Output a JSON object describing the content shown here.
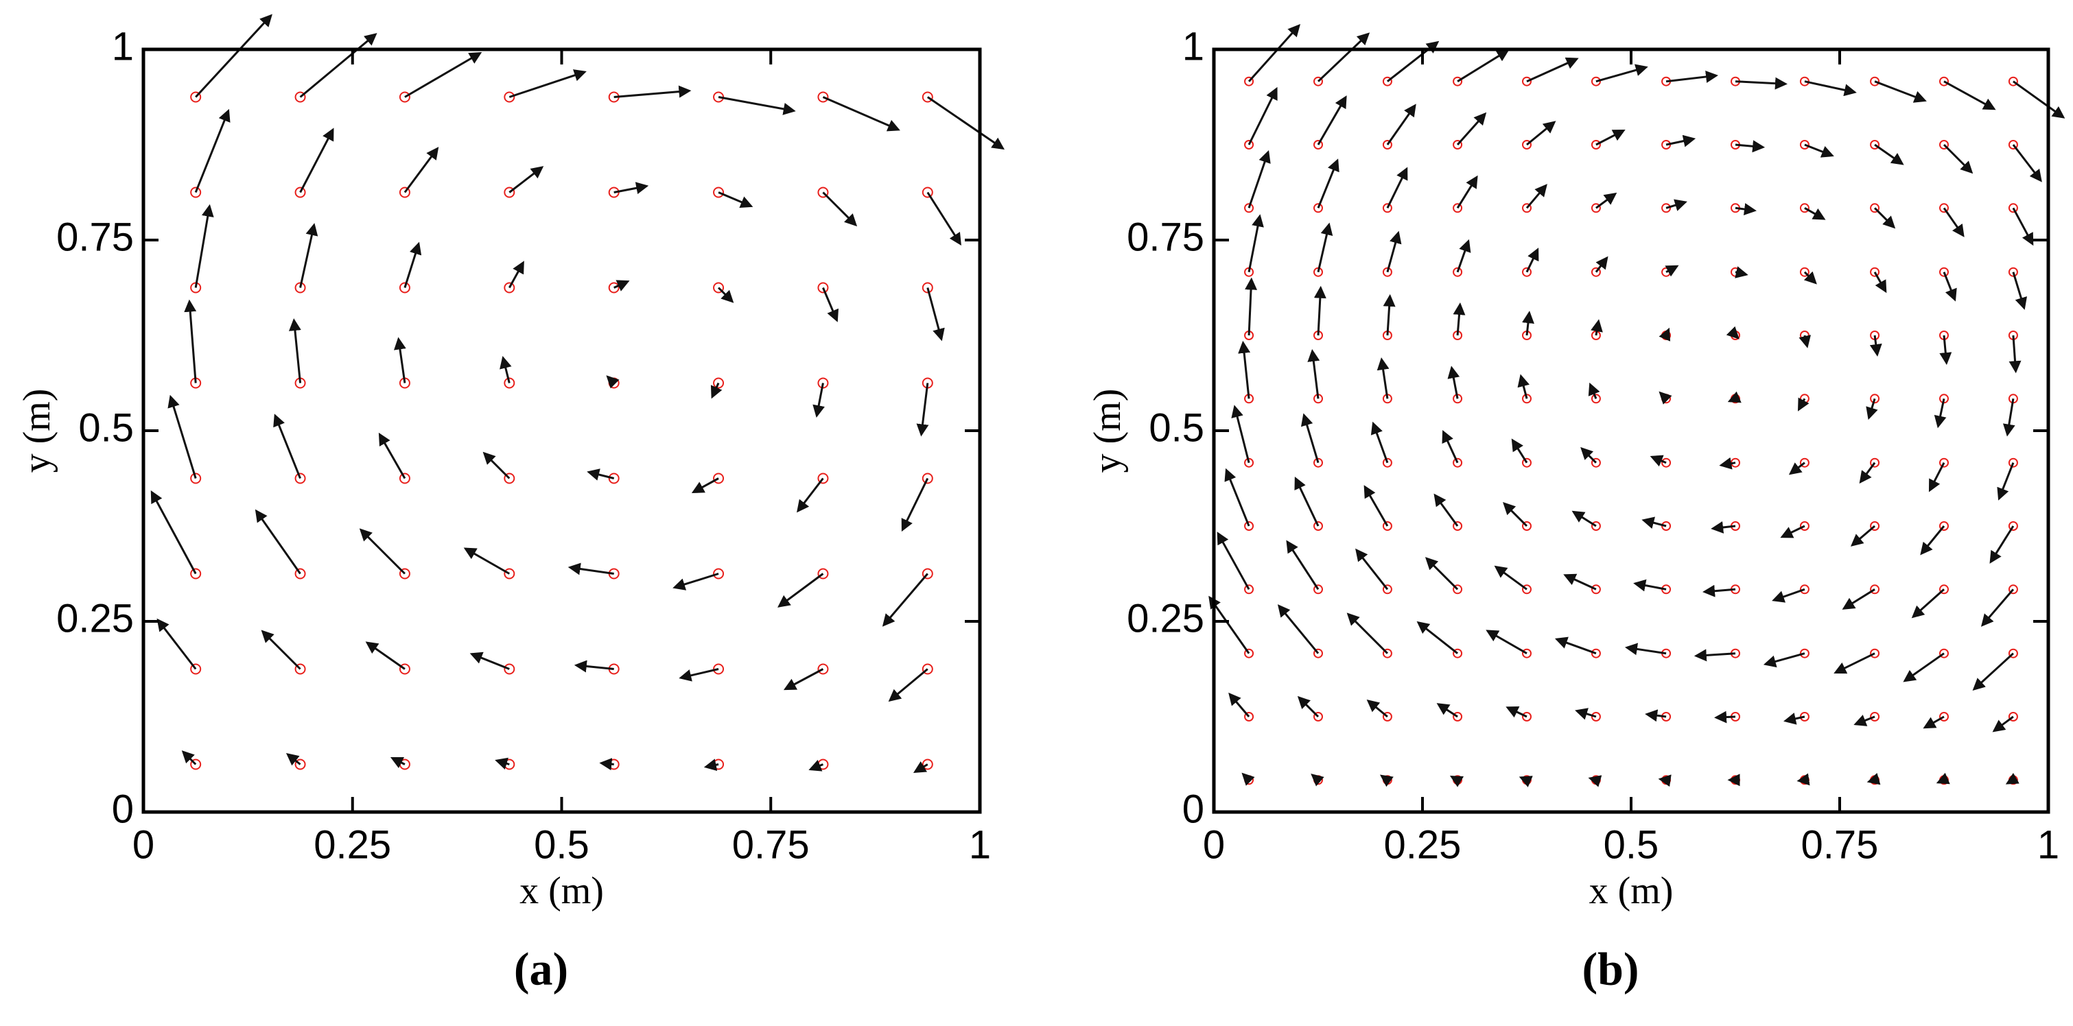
{
  "chart_data": [
    {
      "type": "quiver",
      "label": "(a)",
      "xlabel": "x (m)",
      "ylabel": "y (m)",
      "xlim": [
        0,
        1
      ],
      "ylim": [
        0,
        1
      ],
      "xticks": [
        0,
        0.25,
        0.5,
        0.75,
        1
      ],
      "yticks": [
        0,
        0.25,
        0.5,
        0.75,
        1
      ],
      "particle_color": "#e8201c",
      "arrow_color": "#111111",
      "x": [
        0.0625,
        0.1875,
        0.3125,
        0.4375,
        0.5625,
        0.6875,
        0.8125,
        0.9375
      ],
      "y": [
        0.0625,
        0.1875,
        0.3125,
        0.4375,
        0.5625,
        0.6875,
        0.8125,
        0.9375
      ],
      "u": [
        [
          -0.1,
          -0.1,
          -0.1,
          -0.1,
          -0.1,
          -0.1,
          -0.1,
          -0.1
        ],
        [
          -0.3,
          -0.3,
          -0.3,
          -0.3,
          -0.3,
          -0.3,
          -0.3,
          -0.3
        ],
        [
          -0.35,
          -0.35,
          -0.35,
          -0.35,
          -0.35,
          -0.35,
          -0.35,
          -0.35
        ],
        [
          -0.2,
          -0.2,
          -0.2,
          -0.2,
          -0.2,
          -0.2,
          -0.2,
          -0.2
        ],
        [
          -0.05,
          -0.05,
          -0.05,
          -0.05,
          -0.05,
          -0.05,
          -0.05,
          -0.05
        ],
        [
          0.11,
          0.11,
          0.11,
          0.11,
          0.11,
          0.11,
          0.11,
          0.11
        ],
        [
          0.26,
          0.26,
          0.26,
          0.26,
          0.26,
          0.26,
          0.26,
          0.26
        ],
        [
          0.6,
          0.6,
          0.6,
          0.6,
          0.6,
          0.6,
          0.6,
          0.6
        ]
      ],
      "v": [
        [
          0.1,
          0.08,
          0.05,
          0.03,
          0.01,
          -0.02,
          -0.04,
          -0.06
        ],
        [
          0.39,
          0.3,
          0.21,
          0.12,
          0.03,
          -0.07,
          -0.16,
          -0.25
        ],
        [
          0.65,
          0.5,
          0.35,
          0.2,
          0.05,
          -0.11,
          -0.26,
          -0.41
        ],
        [
          0.65,
          0.5,
          0.35,
          0.2,
          0.05,
          -0.11,
          -0.26,
          -0.41
        ],
        [
          0.65,
          0.5,
          0.35,
          0.2,
          0.05,
          -0.11,
          -0.26,
          -0.41
        ],
        [
          0.65,
          0.5,
          0.35,
          0.2,
          0.05,
          -0.11,
          -0.26,
          -0.41
        ],
        [
          0.65,
          0.5,
          0.35,
          0.2,
          0.05,
          -0.11,
          -0.26,
          -0.41
        ],
        [
          0.65,
          0.5,
          0.35,
          0.2,
          0.05,
          -0.11,
          -0.26,
          -0.41
        ]
      ]
    },
    {
      "type": "quiver",
      "label": "(b)",
      "xlabel": "x (m)",
      "ylabel": "y (m)",
      "xlim": [
        0,
        1
      ],
      "ylim": [
        0,
        1
      ],
      "xticks": [
        0,
        0.25,
        0.5,
        0.75,
        1
      ],
      "yticks": [
        0,
        0.25,
        0.5,
        0.75,
        1
      ],
      "particle_color": "#e8201c",
      "arrow_color": "#111111",
      "x": [
        0.042,
        0.125,
        0.208,
        0.292,
        0.375,
        0.458,
        0.542,
        0.625,
        0.708,
        0.792,
        0.875,
        0.958
      ],
      "y": [
        0.042,
        0.125,
        0.208,
        0.292,
        0.375,
        0.458,
        0.542,
        0.625,
        0.708,
        0.792,
        0.875,
        0.958
      ],
      "u": [
        [
          -0.07,
          -0.07,
          -0.07,
          -0.07,
          -0.07,
          -0.07,
          -0.07,
          -0.07,
          -0.07,
          -0.07,
          -0.07,
          -0.07
        ],
        [
          -0.23,
          -0.23,
          -0.23,
          -0.23,
          -0.23,
          -0.23,
          -0.23,
          -0.23,
          -0.23,
          -0.23,
          -0.23,
          -0.23
        ],
        [
          -0.47,
          -0.47,
          -0.47,
          -0.47,
          -0.47,
          -0.47,
          -0.47,
          -0.47,
          -0.47,
          -0.47,
          -0.47,
          -0.47
        ],
        [
          -0.37,
          -0.37,
          -0.37,
          -0.37,
          -0.37,
          -0.37,
          -0.37,
          -0.37,
          -0.37,
          -0.37,
          -0.37,
          -0.37
        ],
        [
          -0.27,
          -0.27,
          -0.27,
          -0.27,
          -0.27,
          -0.27,
          -0.27,
          -0.27,
          -0.27,
          -0.27,
          -0.27,
          -0.27
        ],
        [
          -0.17,
          -0.17,
          -0.17,
          -0.17,
          -0.17,
          -0.17,
          -0.17,
          -0.17,
          -0.17,
          -0.17,
          -0.17,
          -0.17
        ],
        [
          -0.07,
          -0.07,
          -0.07,
          -0.07,
          -0.07,
          -0.07,
          -0.07,
          -0.07,
          -0.07,
          -0.07,
          -0.07,
          -0.07
        ],
        [
          0.03,
          0.03,
          0.03,
          0.03,
          0.03,
          0.03,
          0.03,
          0.03,
          0.03,
          0.03,
          0.03,
          0.03
        ],
        [
          0.13,
          0.13,
          0.13,
          0.13,
          0.13,
          0.13,
          0.13,
          0.13,
          0.13,
          0.13,
          0.13,
          0.13
        ],
        [
          0.23,
          0.23,
          0.23,
          0.23,
          0.23,
          0.23,
          0.23,
          0.23,
          0.23,
          0.23,
          0.23,
          0.23
        ],
        [
          0.33,
          0.33,
          0.33,
          0.33,
          0.33,
          0.33,
          0.33,
          0.33,
          0.33,
          0.33,
          0.33,
          0.33
        ],
        [
          0.6,
          0.6,
          0.6,
          0.6,
          0.6,
          0.6,
          0.6,
          0.6,
          0.6,
          0.6,
          0.6,
          0.6
        ]
      ],
      "v": [
        [
          0.07,
          0.06,
          0.05,
          0.04,
          0.03,
          0.02,
          0.01,
          0,
          -0.01,
          -0.02,
          -0.03,
          -0.04
        ],
        [
          0.27,
          0.23,
          0.19,
          0.15,
          0.11,
          0.07,
          0.03,
          -0.01,
          -0.05,
          -0.09,
          -0.13,
          -0.17
        ],
        [
          0.67,
          0.57,
          0.47,
          0.37,
          0.27,
          0.17,
          0.07,
          -0.03,
          -0.13,
          -0.23,
          -0.33,
          -0.43
        ],
        [
          0.67,
          0.57,
          0.47,
          0.37,
          0.27,
          0.17,
          0.07,
          -0.03,
          -0.13,
          -0.23,
          -0.33,
          -0.43
        ],
        [
          0.67,
          0.57,
          0.47,
          0.37,
          0.27,
          0.17,
          0.07,
          -0.03,
          -0.13,
          -0.23,
          -0.33,
          -0.43
        ],
        [
          0.67,
          0.57,
          0.47,
          0.37,
          0.27,
          0.17,
          0.07,
          -0.03,
          -0.13,
          -0.23,
          -0.33,
          -0.43
        ],
        [
          0.67,
          0.57,
          0.47,
          0.37,
          0.27,
          0.17,
          0.07,
          -0.03,
          -0.13,
          -0.23,
          -0.33,
          -0.43
        ],
        [
          0.67,
          0.57,
          0.47,
          0.37,
          0.27,
          0.17,
          0.07,
          -0.03,
          -0.13,
          -0.23,
          -0.33,
          -0.43
        ],
        [
          0.67,
          0.57,
          0.47,
          0.37,
          0.27,
          0.17,
          0.07,
          -0.03,
          -0.13,
          -0.23,
          -0.33,
          -0.43
        ],
        [
          0.67,
          0.57,
          0.47,
          0.37,
          0.27,
          0.17,
          0.07,
          -0.03,
          -0.13,
          -0.23,
          -0.33,
          -0.43
        ],
        [
          0.67,
          0.57,
          0.47,
          0.37,
          0.27,
          0.17,
          0.07,
          -0.03,
          -0.13,
          -0.23,
          -0.33,
          -0.43
        ],
        [
          0.67,
          0.57,
          0.47,
          0.37,
          0.27,
          0.17,
          0.07,
          -0.03,
          -0.13,
          -0.23,
          -0.33,
          -0.43
        ]
      ]
    }
  ]
}
